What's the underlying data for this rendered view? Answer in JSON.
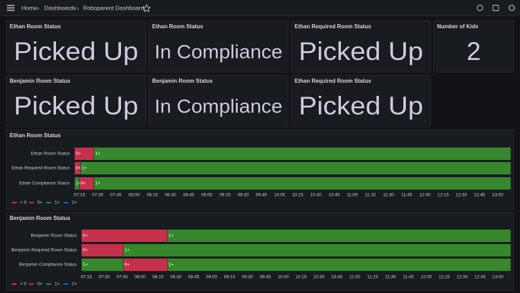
{
  "breadcrumb": [
    "Home",
    "Dashboards",
    "Roboparent Dashboard"
  ],
  "stat_panels": [
    {
      "title": "Ethan Room Status",
      "value": "Picked Up",
      "color": "#56a64b"
    },
    {
      "title": "Ethan Room Status",
      "value": "In Compliance",
      "color": "#56a64b"
    },
    {
      "title": "Ethan Required Room Status",
      "value": "Picked Up",
      "color": "#3274d9"
    },
    {
      "title": "Number of Kids",
      "value": "2",
      "color": "#73bf69"
    },
    {
      "title": "Benjamin Room Status",
      "value": "Picked Up",
      "color": "#56a64b"
    },
    {
      "title": "Benjamin Room Status",
      "value": "In Compliance",
      "color": "#56a64b"
    },
    {
      "title": "Ethan Required Room Status",
      "value": "Picked Up",
      "color": "#3274d9"
    }
  ],
  "timelines": [
    {
      "title": "Ethan Room Status",
      "xlim": [
        "07:11",
        "13:11"
      ],
      "xticks": [
        "07:15",
        "07:30",
        "07:45",
        "08:00",
        "08:15",
        "08:30",
        "08:45",
        "09:00",
        "09:15",
        "09:30",
        "09:45",
        "10:00",
        "10:15",
        "10:30",
        "10:45",
        "11:00",
        "11:15",
        "11:30",
        "11:45",
        "12:00",
        "12:15",
        "12:30",
        "12:45",
        "13:00"
      ],
      "rows": [
        {
          "name": "Ethan Room Status",
          "segments": [
            {
              "label": "0+",
              "start": "07:11",
              "end": "07:27"
            },
            {
              "label": "1+",
              "start": "07:27",
              "end": "13:11"
            }
          ]
        },
        {
          "name": "Ethan Required Room Status",
          "segments": [
            {
              "label": "0+",
              "start": "07:11",
              "end": "07:16"
            },
            {
              "label": "1+",
              "start": "07:16",
              "end": "13:11"
            }
          ]
        },
        {
          "name": "Ethan Compliance Status",
          "segments": [
            {
              "label": "1+",
              "start": "07:11",
              "end": "07:15"
            },
            {
              "label": "0+",
              "start": "07:15",
              "end": "07:27"
            },
            {
              "label": "1+",
              "start": "07:27",
              "end": "13:11"
            }
          ]
        }
      ],
      "legend": [
        {
          "name": "< 0",
          "color": "#c4314b"
        },
        {
          "name": "0+",
          "color": "#c4314b"
        },
        {
          "name": "1+",
          "color": "#37872d"
        },
        {
          "name": "2+",
          "color": "#1f60c4"
        }
      ]
    },
    {
      "title": "Benjamin Room Status",
      "xlim": [
        "07:11",
        "13:11"
      ],
      "xticks": [
        "07:15",
        "07:30",
        "07:45",
        "08:00",
        "08:15",
        "08:30",
        "08:45",
        "09:00",
        "09:15",
        "09:30",
        "09:45",
        "10:00",
        "10:15",
        "10:30",
        "10:45",
        "11:00",
        "11:15",
        "11:30",
        "11:45",
        "12:00",
        "12:15",
        "12:30",
        "12:45",
        "13:00"
      ],
      "rows": [
        {
          "name": "Benjamin Room Status",
          "segments": [
            {
              "label": "0+",
              "start": "07:11",
              "end": "08:23"
            },
            {
              "label": "1+",
              "start": "08:23",
              "end": "13:11"
            }
          ]
        },
        {
          "name": "Benjamin Required Room Status",
          "segments": [
            {
              "label": "0+",
              "start": "07:11",
              "end": "07:46"
            },
            {
              "label": "1+",
              "start": "07:46",
              "end": "13:11"
            }
          ]
        },
        {
          "name": "Benjamin Compliance Status",
          "segments": [
            {
              "label": "1+",
              "start": "07:11",
              "end": "07:46"
            },
            {
              "label": "0+",
              "start": "07:46",
              "end": "08:23"
            },
            {
              "label": "1+",
              "start": "08:23",
              "end": "13:11"
            }
          ]
        }
      ],
      "legend": [
        {
          "name": "< 0",
          "color": "#c4314b"
        },
        {
          "name": "0+",
          "color": "#c4314b"
        },
        {
          "name": "1+",
          "color": "#37872d"
        },
        {
          "name": "2+",
          "color": "#1f60c4"
        }
      ]
    }
  ]
}
